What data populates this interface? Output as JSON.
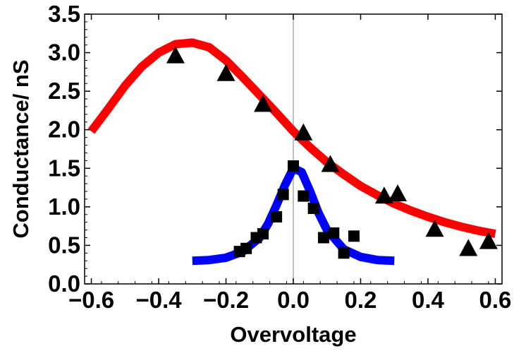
{
  "chart_data": {
    "type": "scatter",
    "title": "",
    "xlabel": "Overvoltage",
    "ylabel": "Conductance/ nS",
    "xlim": [
      -0.62,
      0.62
    ],
    "ylim": [
      0.0,
      3.5
    ],
    "xticks": [
      -0.6,
      -0.4,
      -0.2,
      0.0,
      0.2,
      0.4,
      0.6
    ],
    "xtick_labels": [
      "−0.6",
      "−0.4",
      "−0.2",
      "0.0",
      "0.2",
      "0.4",
      "0.6"
    ],
    "yticks": [
      0.0,
      0.5,
      1.0,
      1.5,
      2.0,
      2.5,
      3.0,
      3.5
    ],
    "ytick_labels": [
      "0.0",
      "0.5",
      "1.0",
      "1.5",
      "2.0",
      "2.5",
      "3.0",
      "3.5"
    ],
    "grid": false,
    "legend": "none",
    "series": [
      {
        "kind": "line",
        "color": "#ff0000",
        "x": [
          -0.6,
          -0.55,
          -0.5,
          -0.45,
          -0.4,
          -0.35,
          -0.3,
          -0.25,
          -0.2,
          -0.15,
          -0.1,
          -0.05,
          0.0,
          0.05,
          0.1,
          0.15,
          0.2,
          0.25,
          0.3,
          0.35,
          0.4,
          0.45,
          0.5,
          0.55,
          0.6
        ],
        "y": [
          1.98,
          2.27,
          2.57,
          2.82,
          3.0,
          3.11,
          3.13,
          3.07,
          2.9,
          2.68,
          2.45,
          2.22,
          1.98,
          1.77,
          1.58,
          1.42,
          1.27,
          1.15,
          1.04,
          0.95,
          0.87,
          0.8,
          0.74,
          0.69,
          0.65
        ]
      },
      {
        "kind": "line",
        "color": "#0000ff",
        "x": [
          -0.3,
          -0.25,
          -0.2,
          -0.15,
          -0.1,
          -0.075,
          -0.05,
          -0.025,
          0.0,
          0.025,
          0.05,
          0.075,
          0.1,
          0.15,
          0.2,
          0.25,
          0.3
        ],
        "y": [
          0.3,
          0.31,
          0.34,
          0.42,
          0.6,
          0.78,
          1.02,
          1.28,
          1.5,
          1.45,
          1.2,
          0.92,
          0.7,
          0.45,
          0.35,
          0.31,
          0.3
        ]
      },
      {
        "kind": "markers",
        "marker": "triangle",
        "color": "#000000",
        "x": [
          -0.35,
          -0.2,
          -0.09,
          0.03,
          0.11,
          0.27,
          0.31,
          0.42,
          0.52,
          0.58
        ],
        "y": [
          2.95,
          2.72,
          2.32,
          1.95,
          1.54,
          1.13,
          1.16,
          0.7,
          0.45,
          0.54
        ]
      },
      {
        "kind": "markers",
        "marker": "square",
        "color": "#000000",
        "x": [
          -0.16,
          -0.14,
          -0.11,
          -0.09,
          -0.05,
          -0.03,
          0.0,
          0.03,
          0.06,
          0.09,
          0.12,
          0.15,
          0.18
        ],
        "y": [
          0.42,
          0.46,
          0.6,
          0.65,
          0.87,
          1.16,
          1.53,
          1.14,
          0.98,
          0.6,
          0.66,
          0.4,
          0.62
        ]
      }
    ]
  }
}
